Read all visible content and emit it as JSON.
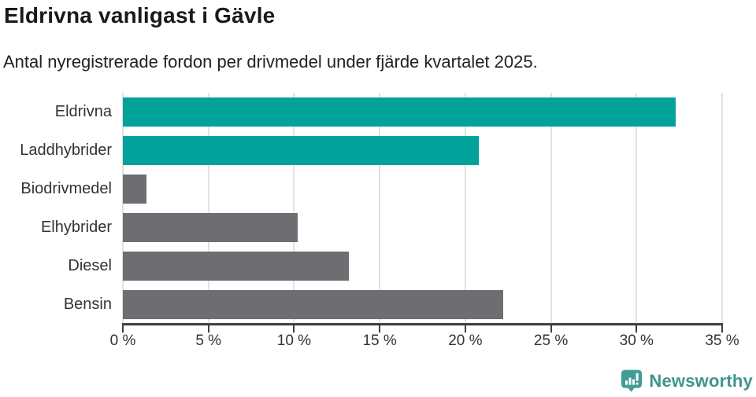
{
  "header": {
    "title": "Eldrivna vanligast i Gävle",
    "subtitle": "Antal nyregistrerade fordon per drivmedel under fjärde kvartalet 2025."
  },
  "chart_data": {
    "type": "bar",
    "orientation": "horizontal",
    "title": "Eldrivna vanligast i Gävle",
    "subtitle": "Antal nyregistrerade fordon per drivmedel under fjärde kvartalet 2025.",
    "categories": [
      "Eldrivna",
      "Laddhybrider",
      "Biodrivmedel",
      "Elhybrider",
      "Diesel",
      "Bensin"
    ],
    "values": [
      32.3,
      20.8,
      1.4,
      10.2,
      13.2,
      22.2
    ],
    "unit": "%",
    "bar_colors": [
      "#00a29a",
      "#00a29a",
      "#6d6d72",
      "#6d6d72",
      "#6d6d72",
      "#6d6d72"
    ],
    "xlabel": "",
    "ylabel": "",
    "xlim": [
      0,
      35
    ],
    "x_tick_values": [
      0,
      5,
      10,
      15,
      20,
      25,
      30,
      35
    ],
    "x_ticks": [
      "0 %",
      "5 %",
      "10 %",
      "15 %",
      "20 %",
      "25 %",
      "30 %",
      "35 %"
    ],
    "grid": "vertical-only",
    "legend": "none"
  },
  "footer": {
    "brand": "Newsworthy",
    "logo_icon": "newsworthy-speech-bubble-chart-icon",
    "brand_color": "#3e948e",
    "logo_fill": "#3f9c96"
  },
  "colors": {
    "accent_teal": "#00a29a",
    "neutral_gray": "#6d6d72",
    "axis": "#3f3f3f",
    "gridline": "#e2e2e2",
    "title_text": "#1a1a1a",
    "body_text": "#222222"
  }
}
